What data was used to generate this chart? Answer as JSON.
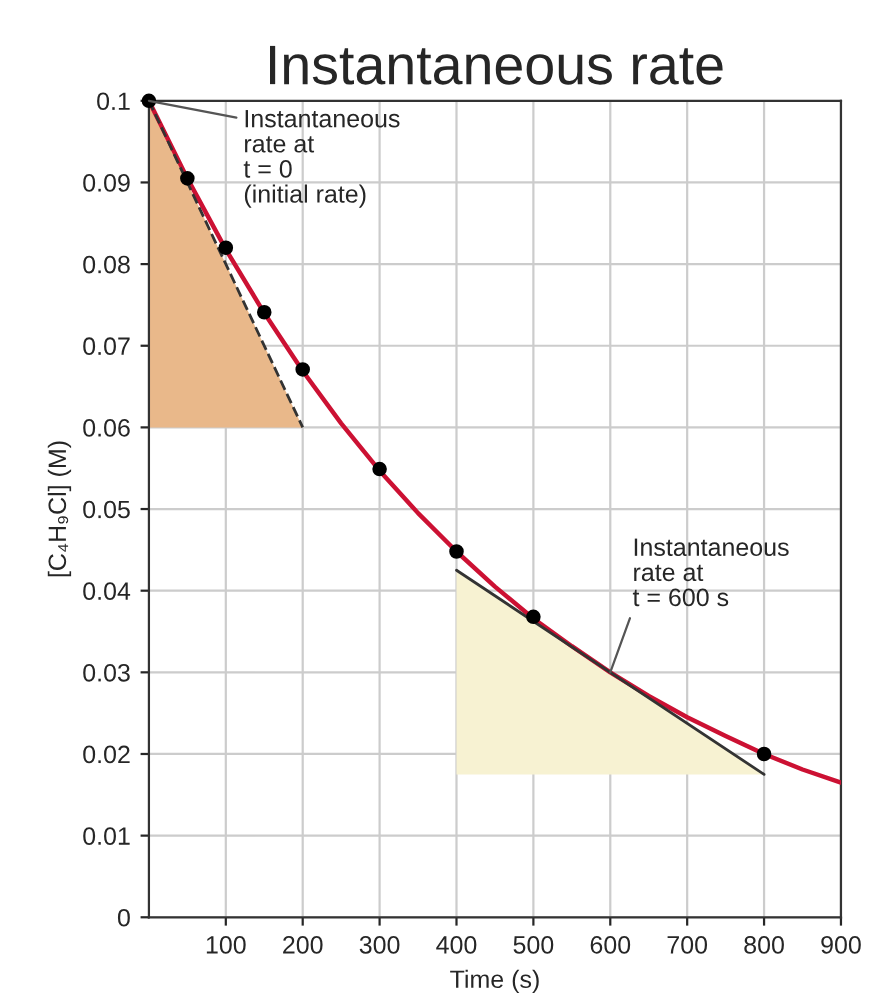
{
  "chart_data": {
    "type": "line",
    "title": "Instantaneous rate",
    "xlabel": "Time (s)",
    "ylabel": "[C₄H₉Cl] (M)",
    "xlim": [
      0,
      900
    ],
    "ylim": [
      0,
      0.1
    ],
    "xticks": [
      100,
      200,
      300,
      400,
      500,
      600,
      700,
      800,
      900
    ],
    "yticks": [
      0,
      0.01,
      0.02,
      0.03,
      0.04,
      0.05,
      0.06,
      0.07,
      0.08,
      0.09,
      0.1
    ],
    "grid": true,
    "legend": false,
    "series": [
      {
        "color": "#cc1133",
        "line_style": "solid",
        "x": [
          0,
          50,
          100,
          150,
          200,
          250,
          300,
          350,
          400,
          450,
          500,
          550,
          600,
          650,
          700,
          750,
          800,
          850,
          900
        ],
        "values": [
          0.1,
          0.0905,
          0.0818,
          0.074,
          0.0669,
          0.0605,
          0.0547,
          0.0495,
          0.0448,
          0.0405,
          0.0366,
          0.0332,
          0.03,
          0.0271,
          0.0245,
          0.0222,
          0.02,
          0.0181,
          0.0165
        ]
      },
      {
        "color": "#333333",
        "line_style": "dashed",
        "x": [
          0,
          200
        ],
        "values": [
          0.1,
          0.06
        ],
        "lower": [
          0.06,
          0.06
        ],
        "upper": [
          0.1,
          0.06
        ]
      },
      {
        "color": "#333333",
        "line_style": "solid",
        "x": [
          400,
          800
        ],
        "values": [
          0.0425,
          0.0175
        ],
        "lower": [
          0.0175,
          0.0175
        ],
        "upper": [
          0.0425,
          0.0175
        ]
      },
      {
        "type": "scatter",
        "color": "#000000",
        "marker": "circle",
        "x": [
          0,
          50,
          100,
          150,
          200,
          300,
          400,
          500,
          800
        ],
        "values": [
          0.1,
          0.0905,
          0.082,
          0.0741,
          0.0671,
          0.0549,
          0.0448,
          0.0368,
          0.02
        ]
      }
    ],
    "annotations": [
      {
        "text": "Instantaneous\nrate at\nt = 0\n(initial rate)",
        "x": 0,
        "y": 0.1
      },
      {
        "text": "Instantaneous\nrate at\nt = 600 s",
        "x": 600,
        "y": 0.03
      }
    ]
  }
}
